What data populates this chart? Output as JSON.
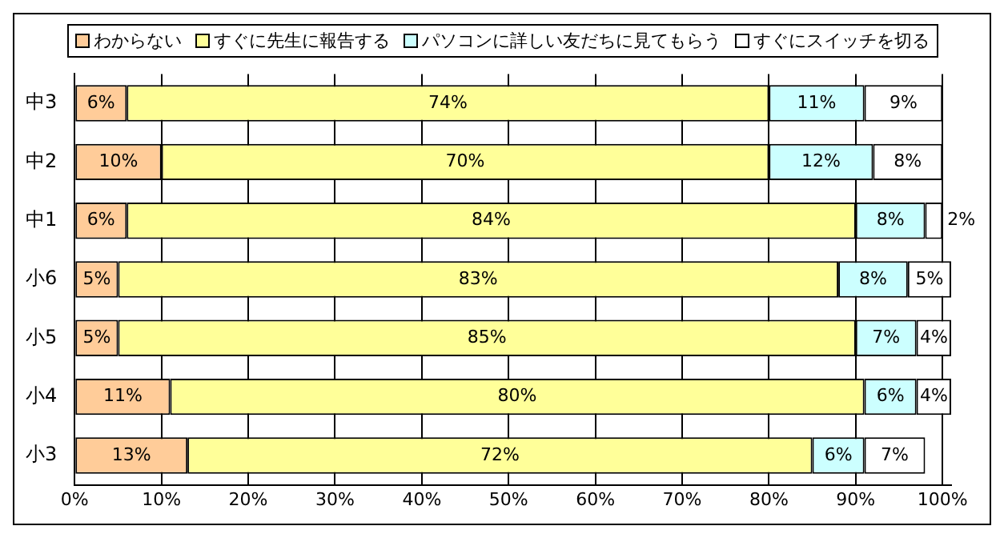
{
  "chart_data": {
    "type": "bar",
    "orientation": "horizontal",
    "stacked": true,
    "categories": [
      "中3",
      "中2",
      "中1",
      "小6",
      "小5",
      "小4",
      "小3"
    ],
    "series": [
      {
        "name": "わからない",
        "color": "#ffcc99",
        "values": [
          6,
          10,
          6,
          5,
          5,
          11,
          13
        ],
        "value_labels": [
          "6%",
          "10%",
          "6%",
          "5%",
          "5%",
          "11%",
          "13%"
        ]
      },
      {
        "name": "すぐに先生に報告する",
        "color": "#ffff99",
        "values": [
          74,
          70,
          84,
          83,
          85,
          80,
          72
        ],
        "value_labels": [
          "74%",
          "70%",
          "84%",
          "83%",
          "85%",
          "80%",
          "72%"
        ]
      },
      {
        "name": "パソコンに詳しい友だちに見てもらう",
        "color": "#ccffff",
        "values": [
          11,
          12,
          8,
          8,
          7,
          6,
          6
        ],
        "value_labels": [
          "11%",
          "12%",
          "8%",
          "8%",
          "7%",
          "6%",
          "6%"
        ]
      },
      {
        "name": "すぐにスイッチを切る",
        "color": "#ffffff",
        "values": [
          9,
          8,
          2,
          5,
          4,
          4,
          7
        ],
        "value_labels": [
          "9%",
          "8%",
          "2%",
          "5%",
          "4%",
          "4%",
          "7%"
        ]
      }
    ],
    "xlim": [
      0,
      101
    ],
    "xticks": [
      {
        "value": 0,
        "label": "0%"
      },
      {
        "value": 10,
        "label": "10%"
      },
      {
        "value": 20,
        "label": "20%"
      },
      {
        "value": 30,
        "label": "30%"
      },
      {
        "value": 40,
        "label": "40%"
      },
      {
        "value": 50,
        "label": "50%"
      },
      {
        "value": 60,
        "label": "60%"
      },
      {
        "value": 70,
        "label": "70%"
      },
      {
        "value": 80,
        "label": "80%"
      },
      {
        "value": 90,
        "label": "90%"
      },
      {
        "value": 100,
        "label": "100%"
      }
    ],
    "grid": "x",
    "legend": "top"
  }
}
